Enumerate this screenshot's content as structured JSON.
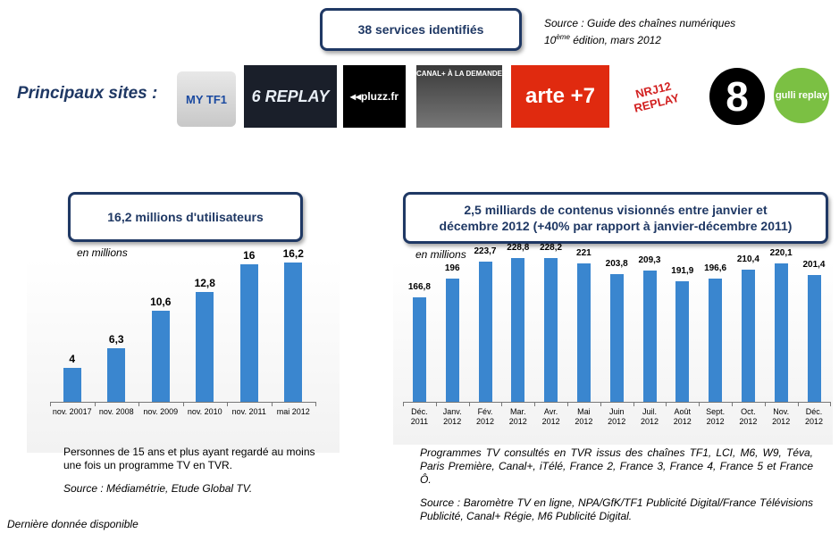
{
  "header": {
    "services_box": "38 services identifiés",
    "source_line1": "Source : Guide des chaînes numériques",
    "source_edition_prefix": "10",
    "source_edition_sup": "ème",
    "source_edition_suffix": " édition, mars 2012",
    "principal_label": "Principaux sites :"
  },
  "logos": [
    {
      "name": "mytf1-logo",
      "text": "MY TF1"
    },
    {
      "name": "m6-replay-logo",
      "text": "6 REPLAY"
    },
    {
      "name": "pluzz-logo",
      "text": "◂◂pluzz.fr"
    },
    {
      "name": "canalplus-logo",
      "text": "CANAL+ À LA DEMANDE"
    },
    {
      "name": "arte-logo",
      "text": "arte +7"
    },
    {
      "name": "nrj12-logo",
      "text": "NRJ12 REPLAY"
    },
    {
      "name": "d8-logo",
      "text": "8"
    },
    {
      "name": "gulli-logo",
      "text": "gulli replay"
    }
  ],
  "left_section": {
    "box_title": "16,2 millions  d'utilisateurs",
    "unit_label": "en millions",
    "note": "Personnes de 15 ans et plus ayant regardé au moins une fois un programme TV en TVR.",
    "source": "Source : Médiamétrie, Etude Global TV."
  },
  "right_section": {
    "box_title_line1": "2,5 milliards  de contenus visionnés entre janvier et",
    "box_title_line2": "décembre 2012 (+40% par rapport à janvier-décembre 2011)",
    "unit_label": "en millions",
    "note": "Programmes TV consultés en TVR issus des chaînes TF1, LCI, M6, W9, Téva, Paris Première, Canal+, iTélé, France 2, France 3, France 4, France 5 et France Ô.",
    "source": "Source : Baromètre TV en ligne, NPA/GfK/TF1 Publicité Digital/France Télévisions Publicité, Canal+ Régie, M6 Publicité Digital."
  },
  "footer": {
    "note": "Dernière donnée disponible"
  },
  "colors": {
    "bar": "#3a86cf",
    "box_border": "#1f3864"
  },
  "chart_data": [
    {
      "type": "bar",
      "categories": [
        "nov. 20017",
        "nov. 2008",
        "nov. 2009",
        "nov. 2010",
        "nov. 2011",
        "mai 2012"
      ],
      "values": [
        4,
        6.3,
        10.6,
        12.8,
        16,
        16.2
      ],
      "value_labels": [
        "4",
        "6,3",
        "10,6",
        "12,8",
        "16",
        "16,2"
      ],
      "ylim": [
        0,
        20
      ],
      "grid": false
    },
    {
      "type": "bar",
      "categories": [
        [
          "Déc.",
          "2011"
        ],
        [
          "Janv.",
          "2012"
        ],
        [
          "Fév.",
          "2012"
        ],
        [
          "Mar.",
          "2012"
        ],
        [
          "Avr.",
          "2012"
        ],
        [
          "Mai",
          "2012"
        ],
        [
          "Juin",
          "2012"
        ],
        [
          "Juil.",
          "2012"
        ],
        [
          "Août",
          "2012"
        ],
        [
          "Sept.",
          "2012"
        ],
        [
          "Oct.",
          "2012"
        ],
        [
          "Nov.",
          "2012"
        ],
        [
          "Déc.",
          "2012"
        ]
      ],
      "values": [
        166.8,
        196,
        223.7,
        228.8,
        228.2,
        221,
        203.8,
        209.3,
        191.9,
        196.6,
        210.4,
        220.1,
        201.4
      ],
      "value_labels": [
        "166,8",
        "196",
        "223,7",
        "228,8",
        "228,2",
        "221",
        "203,8",
        "209,3",
        "191,9",
        "196,6",
        "210,4",
        "220,1",
        "201,4"
      ],
      "ylim": [
        0,
        280
      ],
      "grid": false
    }
  ]
}
